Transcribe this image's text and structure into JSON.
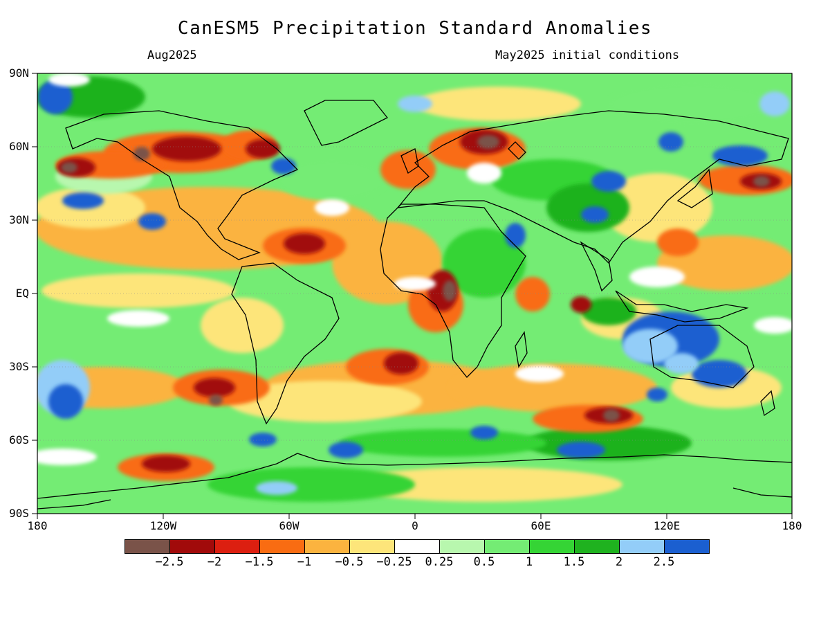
{
  "title": "CanESM5 Precipitation Standard Anomalies",
  "subtitle_left": "Aug2025",
  "subtitle_right": "May2025 initial conditions",
  "lat_labels": [
    "90N",
    "60N",
    "30N",
    "EQ",
    "30S",
    "60S",
    "90S"
  ],
  "lon_labels": [
    "180",
    "120W",
    "60W",
    "0",
    "60E",
    "120E",
    "180"
  ],
  "colorbar": {
    "colors": [
      "#7a5349",
      "#a10a0a",
      "#dc1f10",
      "#f96c12",
      "#fbb33f",
      "#fde57a",
      "#ffffff",
      "#b8f7ae",
      "#74ec74",
      "#35d435",
      "#1fb21f",
      "#93cdf8",
      "#1b5fd0"
    ],
    "labels": [
      "-2.5",
      "-2",
      "-1.5",
      "-1",
      "-0.5",
      "-0.25",
      "0.25",
      "0.5",
      "1",
      "1.5",
      "2",
      "2.5"
    ]
  }
}
